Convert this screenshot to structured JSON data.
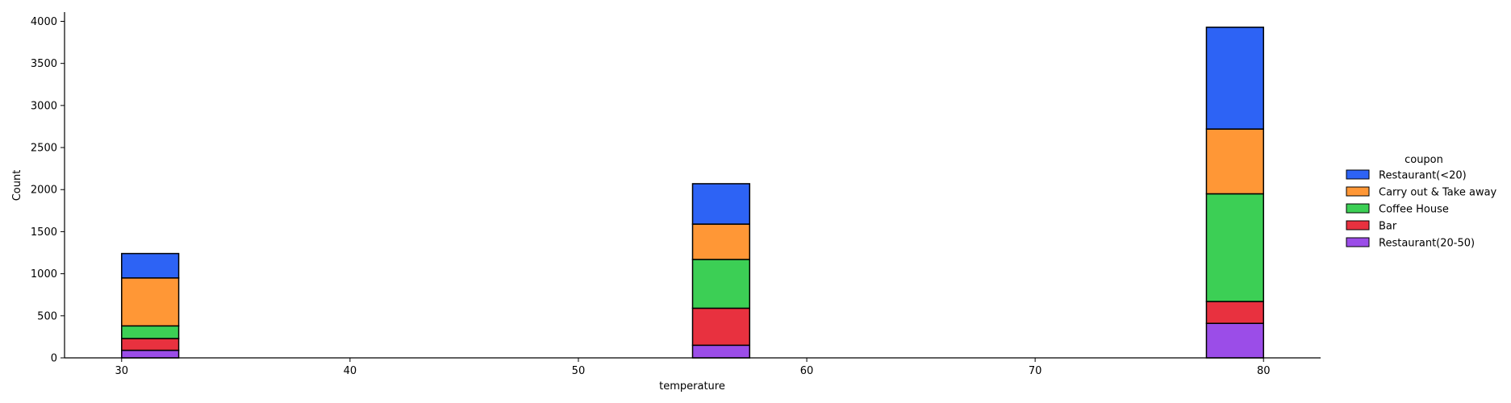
{
  "chart_data": {
    "type": "bar",
    "stacked": true,
    "xlabel": "temperature",
    "ylabel": "Count",
    "x_ticks": [
      30,
      40,
      50,
      60,
      70,
      80
    ],
    "y_ticks": [
      0,
      500,
      1000,
      1500,
      2000,
      2500,
      3000,
      3500,
      4000
    ],
    "xlim": [
      27.5,
      82.5
    ],
    "ylim": [
      0,
      4110
    ],
    "bins": [
      [
        30,
        32.5
      ],
      [
        55,
        57.5
      ],
      [
        77.5,
        80
      ]
    ],
    "legend": {
      "title": "coupon",
      "position": "right"
    },
    "series": [
      {
        "name": "Restaurant(20-50)",
        "color": "#9b4de8",
        "values": [
          90,
          150,
          410
        ]
      },
      {
        "name": "Bar",
        "color": "#e8313f",
        "values": [
          140,
          440,
          260
        ]
      },
      {
        "name": "Coffee House",
        "color": "#3ccf55",
        "values": [
          150,
          580,
          1280
        ]
      },
      {
        "name": "Carry out & Take away",
        "color": "#ff9736",
        "values": [
          570,
          420,
          770
        ]
      },
      {
        "name": "Restaurant(<20)",
        "color": "#2d63f5",
        "values": [
          290,
          480,
          1210
        ]
      }
    ],
    "legend_order": [
      "Restaurant(<20)",
      "Carry out & Take away",
      "Coffee House",
      "Bar",
      "Restaurant(20-50)"
    ]
  }
}
